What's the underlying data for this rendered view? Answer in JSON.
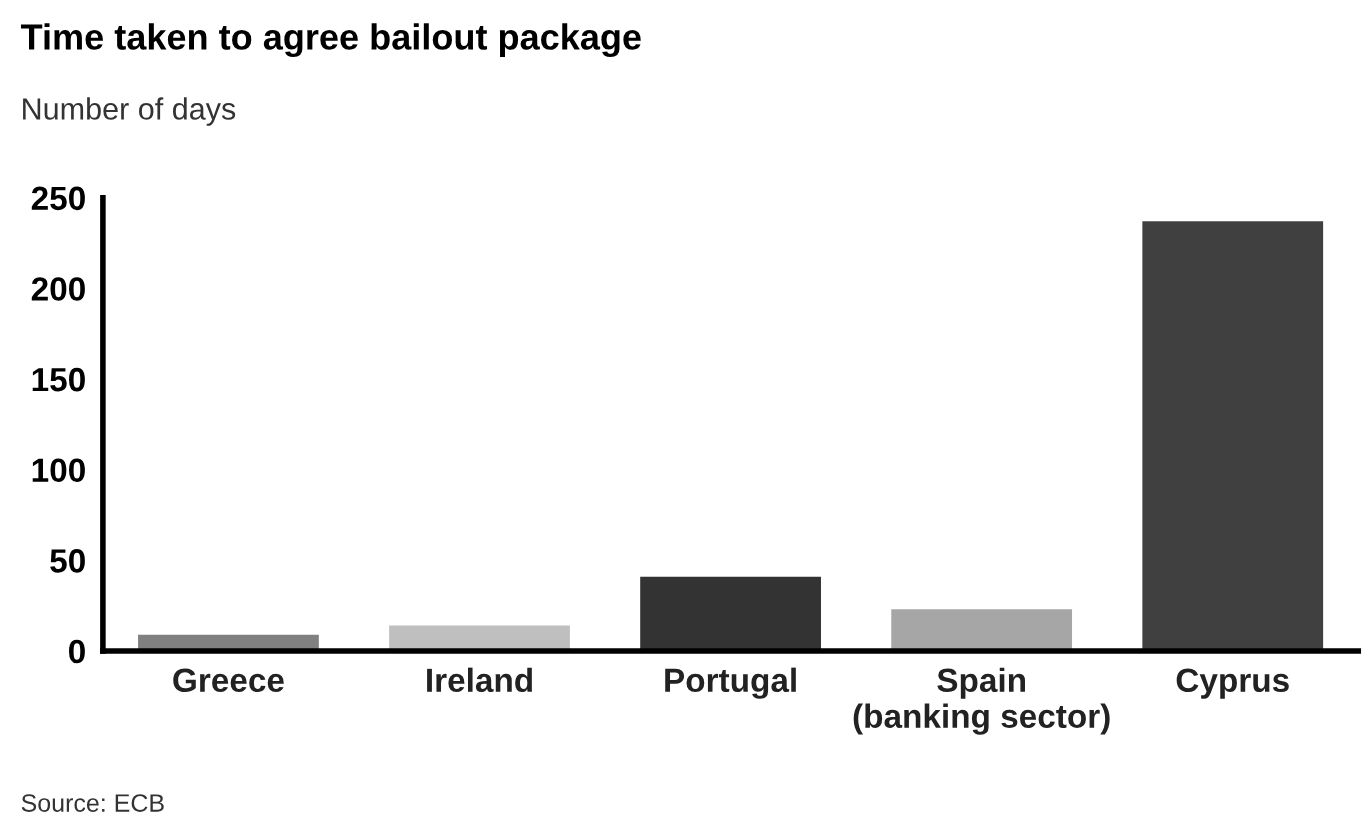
{
  "chart_data": {
    "type": "bar",
    "title": "Time taken to agree bailout package",
    "subtitle": "Number of days",
    "categories": [
      "Greece",
      "Ireland",
      "Portugal",
      "Spain\n(banking sector)",
      "Cyprus"
    ],
    "values": [
      9,
      14,
      41,
      23,
      237
    ],
    "colors": [
      "#808080",
      "#bfbfbf",
      "#333333",
      "#a6a6a6",
      "#404040"
    ],
    "ylim": [
      0,
      250
    ],
    "yticks": [
      0,
      50,
      100,
      150,
      200,
      250
    ],
    "grid": false,
    "annotations": [
      "Source: ECB"
    ]
  }
}
